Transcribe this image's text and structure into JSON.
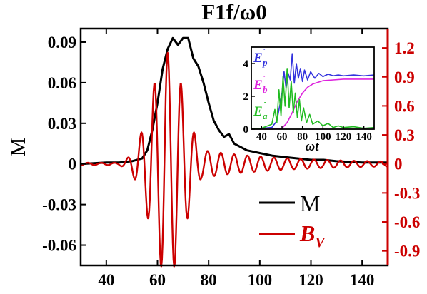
{
  "chart_data": {
    "type": "line",
    "title": "F1f/ω0",
    "xlabel": "",
    "ylabel_left": "M",
    "ylabel_right": "",
    "xlim": [
      30,
      150
    ],
    "ylim_left": [
      -0.075,
      0.1
    ],
    "ylim_right": [
      -1.05,
      1.4
    ],
    "x_ticks": [
      40,
      60,
      80,
      100,
      120,
      140
    ],
    "x_tick_labels": [
      "40",
      "60",
      "80",
      "100",
      "120",
      "140"
    ],
    "y_left_ticks": [
      -0.06,
      -0.03,
      0,
      0.03,
      0.06,
      0.09
    ],
    "y_left_tick_labels": [
      "-0.06",
      "-0.03",
      "0",
      "0.03",
      "0.06",
      "0.09"
    ],
    "y_right_ticks": [
      -0.9,
      -0.6,
      -0.3,
      0,
      0.3,
      0.6,
      0.9,
      1.2
    ],
    "y_right_tick_labels": [
      "-0.9",
      "-0.6",
      "-0.3",
      "0",
      "0.3",
      "0.6",
      "0.9",
      "1.2"
    ],
    "series": [
      {
        "name": "M",
        "color": "#000000",
        "axis": "left",
        "x": [
          30,
          40,
          45,
          50,
          54,
          56,
          58,
          60,
          62,
          64,
          66,
          68,
          70,
          72,
          74,
          76,
          78,
          80,
          82,
          84,
          86,
          88,
          90,
          92,
          95,
          100,
          105,
          110,
          115,
          120,
          125,
          130,
          140,
          150
        ],
        "y": [
          0.0,
          0.001,
          0.001,
          0.002,
          0.004,
          0.01,
          0.025,
          0.045,
          0.07,
          0.085,
          0.093,
          0.088,
          0.093,
          0.093,
          0.078,
          0.072,
          0.06,
          0.045,
          0.032,
          0.025,
          0.02,
          0.022,
          0.015,
          0.013,
          0.01,
          0.008,
          0.006,
          0.005,
          0.004,
          0.003,
          0.003,
          0.002,
          0.001,
          0.001
        ]
      },
      {
        "name": "B",
        "name_subscript": "V",
        "color": "#cc0000",
        "axis": "right",
        "wave": {
          "center": 64,
          "sigma": 6.5,
          "amplitude": 1.15,
          "period": 5.2,
          "tail_start": 70,
          "tail_amp": 0.06,
          "tail_min": 0.12,
          "tail_decay": 25,
          "residual": 0.012
        }
      }
    ],
    "inset": {
      "xlabel": "ωt",
      "xlim": [
        30,
        150
      ],
      "ylim": [
        0,
        5
      ],
      "x_ticks": [
        40,
        60,
        80,
        100,
        120,
        140
      ],
      "x_tick_labels": [
        "40",
        "60",
        "80",
        "100",
        "120",
        "140"
      ],
      "y_ticks": [
        0,
        2,
        4
      ],
      "y_tick_labels": [
        "0",
        "2",
        "4"
      ],
      "labels": [
        {
          "text": "E",
          "sub": "p",
          "sup": "´",
          "color": "#3333dd"
        },
        {
          "text": "E",
          "sub": "b",
          "sup": "´",
          "color": "#dd22dd"
        },
        {
          "text": "E",
          "sub": "a",
          "sup": "´",
          "color": "#22bb22"
        }
      ],
      "series": [
        {
          "name": "E'p",
          "color": "#3333dd",
          "x": [
            30,
            40,
            50,
            55,
            58,
            60,
            62,
            64,
            66,
            68,
            70,
            72,
            74,
            76,
            78,
            80,
            82,
            85,
            88,
            92,
            96,
            100,
            105,
            110,
            115,
            120,
            130,
            140,
            150
          ],
          "y": [
            0.05,
            0.05,
            0.1,
            0.5,
            1.5,
            2.2,
            3.5,
            2.5,
            3.4,
            3.0,
            4.6,
            2.8,
            4.0,
            3.1,
            3.7,
            2.9,
            3.6,
            3.0,
            3.5,
            3.1,
            3.4,
            3.2,
            3.35,
            3.25,
            3.3,
            3.25,
            3.3,
            3.25,
            3.3
          ]
        },
        {
          "name": "E'b",
          "color": "#dd22dd",
          "x": [
            30,
            50,
            60,
            65,
            70,
            75,
            80,
            85,
            90,
            100,
            110,
            120,
            130,
            140,
            150
          ],
          "y": [
            0,
            0,
            0.05,
            0.4,
            1.0,
            1.7,
            2.2,
            2.55,
            2.75,
            2.95,
            3.0,
            3.05,
            3.05,
            3.05,
            3.05
          ]
        },
        {
          "name": "E'a",
          "color": "#22bb22",
          "x": [
            30,
            40,
            50,
            53,
            55,
            57,
            59,
            61,
            63,
            65,
            67,
            69,
            71,
            73,
            75,
            77,
            79,
            81,
            84,
            87,
            90,
            95,
            100,
            105,
            110,
            115,
            120,
            130,
            140,
            150
          ],
          "y": [
            0.05,
            0.05,
            0.3,
            1.2,
            0.4,
            2.4,
            0.8,
            3.2,
            1.4,
            3.7,
            1.3,
            2.9,
            1.0,
            2.2,
            0.7,
            1.8,
            0.5,
            1.3,
            0.4,
            0.9,
            0.3,
            0.5,
            0.2,
            0.35,
            0.1,
            0.2,
            0.1,
            0.15,
            0.05,
            0.1
          ]
        }
      ]
    },
    "legend": {
      "placement": "bottom-right",
      "entries": [
        {
          "label": "M",
          "color": "#000000"
        },
        {
          "label": "B",
          "sub": "V",
          "color": "#cc0000"
        }
      ]
    },
    "grid": false
  }
}
